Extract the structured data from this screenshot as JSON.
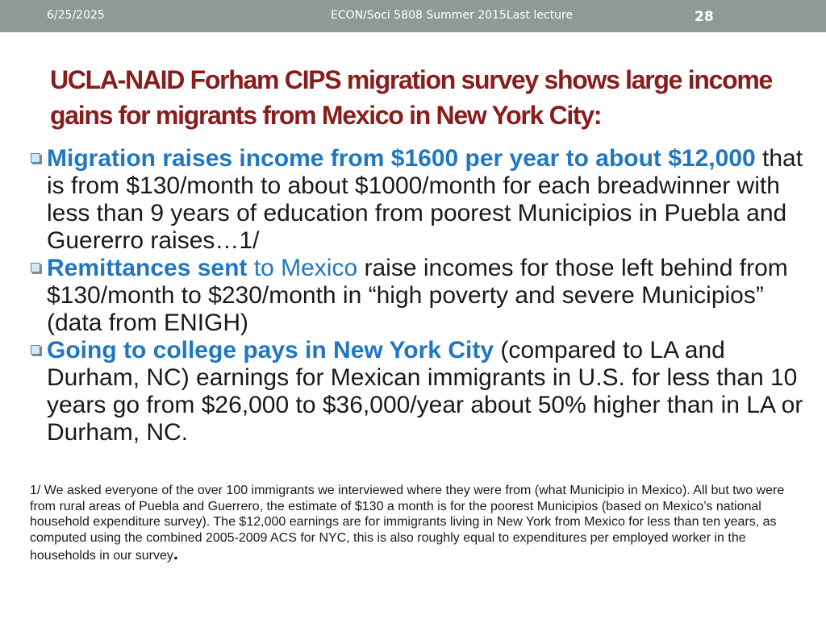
{
  "header": {
    "date": "6/25/2025",
    "footer_text": "ECON/Soci 5808 Summer 2015Last lecture",
    "page_number": "28"
  },
  "title": "UCLA-NAID Forham CIPS migration survey shows large income gains for migrants from Mexico in New York City:",
  "bullets": [
    {
      "highlight": "Migration raises income from $1600 per year to about $12,000",
      "rest": " that is from $130/month to about $1000/month for each breadwinner with less than 9 years of education from poorest Municipios in Puebla and Guererro raises…1/"
    },
    {
      "highlight": "Remittances sent",
      "highlight2": " to Mexico",
      "rest": " raise incomes for those left behind from $130/month to $230/month in “high poverty and severe Municipios” (data from ENIGH)"
    },
    {
      "highlight": "Going to college pays in New York City",
      "rest": " (compared to LA and Durham, NC) earnings for Mexican immigrants in U.S. for less than 10 years go from $26,000 to $36,000/year about 50% higher than in LA or Durham, NC."
    }
  ],
  "footnote": {
    "text": "1/ We asked everyone of the over 100 immigrants we interviewed where they were from (what Municipio in Mexico). All but two were from rural areas of Puebla and Guerrero, the estimate of $130 a month is for the poorest Municipios (based on Mexico’s national household expenditure survey).  The $12,000 earnings are for immigrants living in New York from Mexico for less than ten years, as computed using the combined 2005-2009 ACS for NYC, this is also roughly equal to expenditures per employed worker in the households in our survey",
    "period": "."
  }
}
